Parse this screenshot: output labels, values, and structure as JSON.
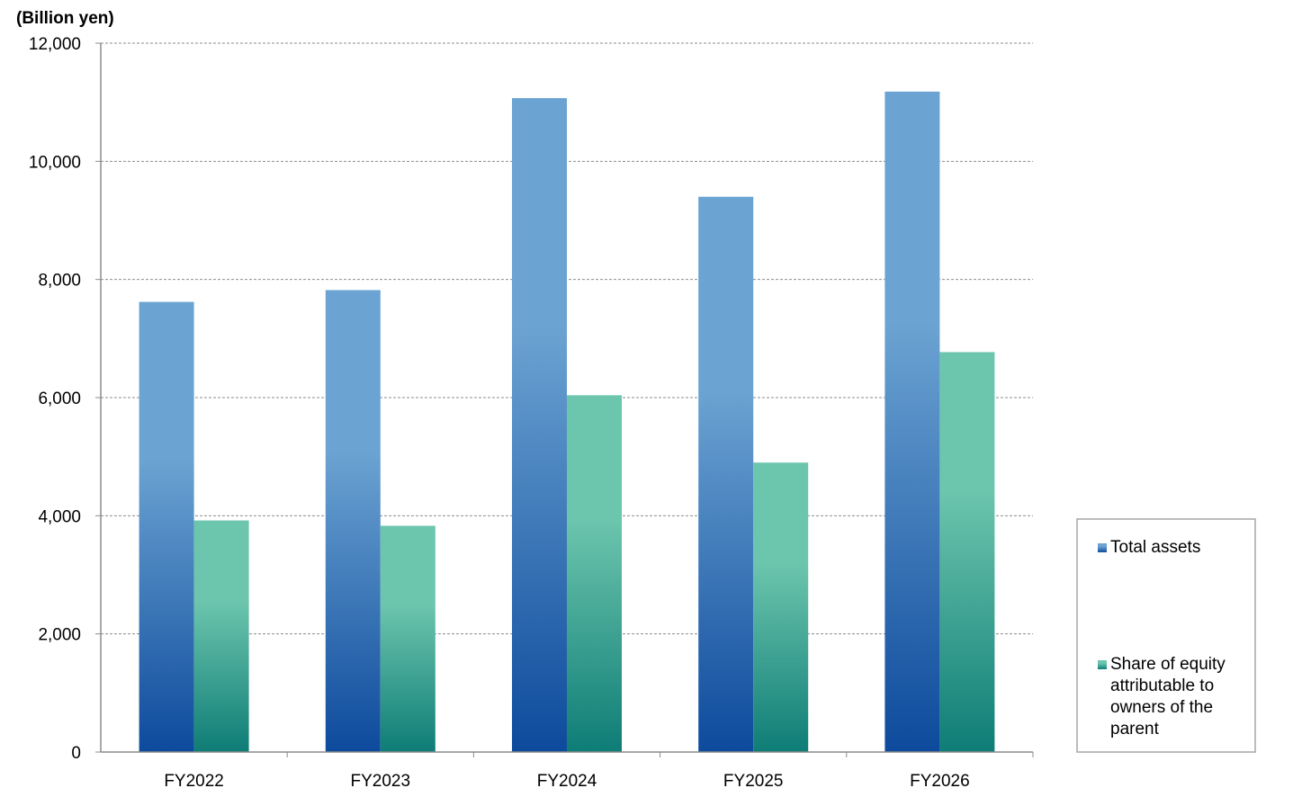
{
  "chart_data": {
    "type": "bar",
    "unit_label": "(Billion yen)",
    "categories": [
      "FY2022",
      "FY2023",
      "FY2024",
      "FY2025",
      "FY2026"
    ],
    "series": [
      {
        "name": "Total assets",
        "values": [
          7620,
          7820,
          11070,
          9400,
          11180
        ],
        "color_top": "#6ba3d2",
        "color_bottom": "#0d4a9c"
      },
      {
        "name": "Share of equity attributable to owners of the parent",
        "legend_lines": [
          "Share of equity",
          "attributable to",
          "owners of the",
          "parent"
        ],
        "values": [
          3920,
          3830,
          6040,
          4900,
          6770
        ],
        "color_top": "#6cc5ad",
        "color_bottom": "#0e7d76"
      }
    ],
    "ylim": [
      0,
      12000
    ],
    "yticks": [
      0,
      2000,
      4000,
      6000,
      8000,
      10000,
      12000
    ],
    "ytick_labels": [
      "0",
      "2,000",
      "4,000",
      "6,000",
      "8,000",
      "10,000",
      "12,000"
    ],
    "grid": true,
    "legend_position": "right"
  }
}
